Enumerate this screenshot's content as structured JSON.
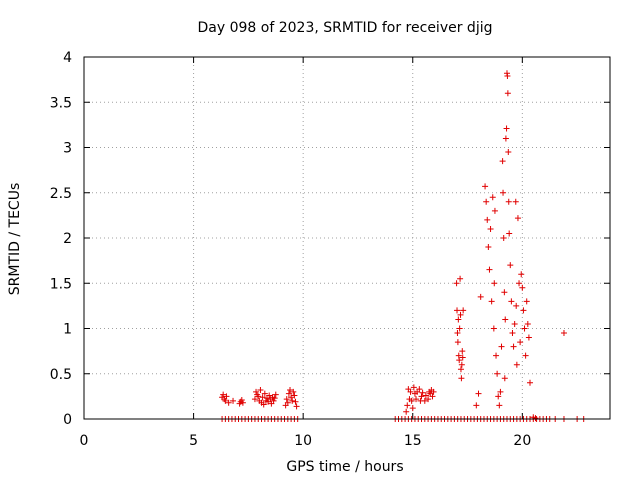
{
  "chart_data": {
    "type": "scatter",
    "title": "Day 098 of 2023, SRMTID for receiver djig",
    "xlabel": "GPS time / hours",
    "ylabel": "SRMTID / TECUs",
    "xlim": [
      0,
      24
    ],
    "ylim": [
      0,
      4
    ],
    "x_ticks": [
      0,
      5,
      10,
      15,
      20
    ],
    "y_ticks": [
      0,
      0.5,
      1,
      1.5,
      2,
      2.5,
      3,
      3.5,
      4
    ],
    "x_tick_labels": [
      "0",
      "5",
      "10",
      "15",
      "20"
    ],
    "y_tick_labels": [
      "0",
      "0.5",
      "1",
      "1.5",
      "2",
      "2.5",
      "3",
      "3.5",
      "4"
    ],
    "grid": true,
    "marker": "+",
    "series": [
      {
        "name": "SRMTID",
        "color": "#e00000",
        "points": [
          [
            6.3,
            0.24
          ],
          [
            6.35,
            0.27
          ],
          [
            6.4,
            0.22
          ],
          [
            6.45,
            0.2
          ],
          [
            6.5,
            0.25
          ],
          [
            6.6,
            0.18
          ],
          [
            6.8,
            0.2
          ],
          [
            7.1,
            0.17
          ],
          [
            7.15,
            0.19
          ],
          [
            7.2,
            0.21
          ],
          [
            7.25,
            0.18
          ],
          [
            7.8,
            0.22
          ],
          [
            7.85,
            0.3
          ],
          [
            7.9,
            0.27
          ],
          [
            7.95,
            0.25
          ],
          [
            8.0,
            0.2
          ],
          [
            8.05,
            0.32
          ],
          [
            8.1,
            0.18
          ],
          [
            8.15,
            0.24
          ],
          [
            8.2,
            0.16
          ],
          [
            8.25,
            0.28
          ],
          [
            8.3,
            0.2
          ],
          [
            8.35,
            0.23
          ],
          [
            8.4,
            0.19
          ],
          [
            8.45,
            0.26
          ],
          [
            8.5,
            0.22
          ],
          [
            8.55,
            0.17
          ],
          [
            8.6,
            0.24
          ],
          [
            8.65,
            0.2
          ],
          [
            8.7,
            0.23
          ],
          [
            8.75,
            0.27
          ],
          [
            9.2,
            0.15
          ],
          [
            9.25,
            0.22
          ],
          [
            9.3,
            0.18
          ],
          [
            9.35,
            0.28
          ],
          [
            9.4,
            0.32
          ],
          [
            9.45,
            0.24
          ],
          [
            9.5,
            0.2
          ],
          [
            9.55,
            0.3
          ],
          [
            9.6,
            0.26
          ],
          [
            9.65,
            0.19
          ],
          [
            9.7,
            0.14
          ],
          [
            14.7,
            0.08
          ],
          [
            14.75,
            0.15
          ],
          [
            14.8,
            0.33
          ],
          [
            14.85,
            0.22
          ],
          [
            14.9,
            0.3
          ],
          [
            14.95,
            0.2
          ],
          [
            15.0,
            0.12
          ],
          [
            15.05,
            0.35
          ],
          [
            15.1,
            0.28
          ],
          [
            15.15,
            0.22
          ],
          [
            15.2,
            0.3
          ],
          [
            15.3,
            0.33
          ],
          [
            15.35,
            0.2
          ],
          [
            15.4,
            0.25
          ],
          [
            15.45,
            0.29
          ],
          [
            15.55,
            0.2
          ],
          [
            15.6,
            0.26
          ],
          [
            15.7,
            0.22
          ],
          [
            15.75,
            0.3
          ],
          [
            15.8,
            0.28
          ],
          [
            15.85,
            0.32
          ],
          [
            15.9,
            0.25
          ],
          [
            15.95,
            0.3
          ],
          [
            17.0,
            1.5
          ],
          [
            17.02,
            1.2
          ],
          [
            17.04,
            0.95
          ],
          [
            17.06,
            0.85
          ],
          [
            17.08,
            1.1
          ],
          [
            17.1,
            0.7
          ],
          [
            17.12,
            0.65
          ],
          [
            17.14,
            1.0
          ],
          [
            17.16,
            1.55
          ],
          [
            17.18,
            1.15
          ],
          [
            17.2,
            0.55
          ],
          [
            17.22,
            0.45
          ],
          [
            17.24,
            0.6
          ],
          [
            17.26,
            0.75
          ],
          [
            17.28,
            0.68
          ],
          [
            17.3,
            1.2
          ],
          [
            17.9,
            0.15
          ],
          [
            18.0,
            0.28
          ],
          [
            18.1,
            1.35
          ],
          [
            18.3,
            2.57
          ],
          [
            18.35,
            2.4
          ],
          [
            18.4,
            2.2
          ],
          [
            18.45,
            1.9
          ],
          [
            18.5,
            1.65
          ],
          [
            18.55,
            2.1
          ],
          [
            18.6,
            1.3
          ],
          [
            18.65,
            2.45
          ],
          [
            18.7,
            1.0
          ],
          [
            18.72,
            1.5
          ],
          [
            18.75,
            2.3
          ],
          [
            18.8,
            0.7
          ],
          [
            18.85,
            0.5
          ],
          [
            18.9,
            0.25
          ],
          [
            18.95,
            0.15
          ],
          [
            19.0,
            0.3
          ],
          [
            19.05,
            0.8
          ],
          [
            19.1,
            2.85
          ],
          [
            19.12,
            2.5
          ],
          [
            19.15,
            2.0
          ],
          [
            19.18,
            1.4
          ],
          [
            19.2,
            0.45
          ],
          [
            19.22,
            1.1
          ],
          [
            19.25,
            3.1
          ],
          [
            19.28,
            3.21
          ],
          [
            19.3,
            3.82
          ],
          [
            19.32,
            3.79
          ],
          [
            19.34,
            3.6
          ],
          [
            19.36,
            2.95
          ],
          [
            19.38,
            2.4
          ],
          [
            19.4,
            2.05
          ],
          [
            19.45,
            1.7
          ],
          [
            19.5,
            1.3
          ],
          [
            19.55,
            0.95
          ],
          [
            19.6,
            0.8
          ],
          [
            19.65,
            1.05
          ],
          [
            19.7,
            2.4
          ],
          [
            19.72,
            1.25
          ],
          [
            19.75,
            0.6
          ],
          [
            19.8,
            2.22
          ],
          [
            19.85,
            1.5
          ],
          [
            19.9,
            0.85
          ],
          [
            19.95,
            1.6
          ],
          [
            20.0,
            1.45
          ],
          [
            20.05,
            1.2
          ],
          [
            20.1,
            1.0
          ],
          [
            20.15,
            0.7
          ],
          [
            20.2,
            1.3
          ],
          [
            20.25,
            1.05
          ],
          [
            20.3,
            0.9
          ],
          [
            20.35,
            0.4
          ],
          [
            20.5,
            0.02
          ],
          [
            20.6,
            0.01
          ],
          [
            21.9,
            0.95
          ]
        ]
      }
    ],
    "zero_points_x": [
      6.3,
      6.45,
      6.6,
      6.75,
      6.9,
      7.05,
      7.2,
      7.35,
      7.5,
      7.65,
      7.8,
      7.95,
      8.1,
      8.25,
      8.4,
      8.55,
      8.7,
      8.85,
      9.0,
      9.15,
      9.3,
      9.45,
      9.6,
      9.75,
      14.2,
      14.35,
      14.5,
      14.65,
      14.8,
      14.95,
      15.1,
      15.25,
      15.4,
      15.55,
      15.7,
      15.85,
      16.0,
      16.15,
      16.3,
      16.45,
      16.6,
      16.75,
      16.9,
      17.05,
      17.2,
      17.35,
      17.5,
      17.65,
      17.8,
      17.95,
      18.1,
      18.25,
      18.4,
      18.55,
      18.7,
      18.85,
      19.0,
      19.15,
      19.3,
      19.45,
      19.6,
      19.75,
      19.9,
      20.05,
      20.2,
      20.35,
      20.5,
      20.65,
      20.8,
      20.95,
      21.1,
      21.25,
      21.5,
      21.9,
      22.5,
      22.8
    ]
  }
}
